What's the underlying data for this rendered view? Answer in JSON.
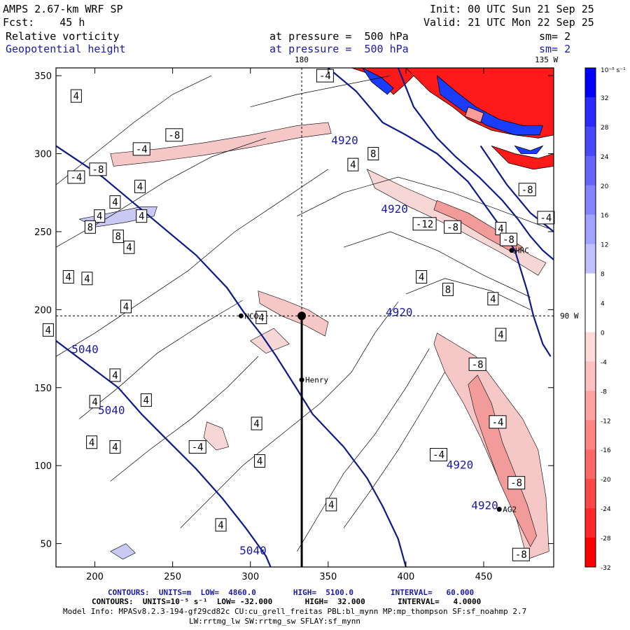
{
  "header": {
    "model_title": "AMPS 2.67-km WRF SP",
    "forecast": "Fcst:    45 h",
    "init": "Init: 00 UTC Sun 21 Sep 25",
    "valid": "Valid: 21 UTC Mon 22 Sep 25",
    "field1_name": "Relative vorticity",
    "field1_level": "at pressure =  500 hPa",
    "field1_smooth": "sm= 2",
    "field2_name": "Geopotential height",
    "field2_level": "at pressure =  500 hPa",
    "field2_smooth": "sm= 2"
  },
  "map_labels": {
    "top_lon_left": "180",
    "top_lon_right": "135 W",
    "right_lon": "90 W",
    "stations": [
      "NCO",
      "Henry",
      "HRC",
      "AG2"
    ]
  },
  "footer": {
    "contours_height": "CONTOURS:  UNITS=m  LOW=  4860.0        HIGH=  5100.0        INTERVAL=   60.000",
    "contours_vort": "CONTOURS:  UNITS=10⁻⁵ s⁻¹  LOW= -32.000       HIGH=  32.000       INTERVAL=   4.0000",
    "model_info": "Model Info: MPASv8.2.3-194-gf29cd82c CU:cu_grell_freitas PBL:bl_mynn MP:mp_thompson SF:sf_noahmp 2.7",
    "model_info2": "LW:rrtmg_lw SW:rrtmg_sw SFLAY:sf_mynn"
  },
  "chart_data": {
    "type": "heatmap",
    "xlim": [
      175,
      495
    ],
    "ylim": [
      35,
      355
    ],
    "x_ticks": [
      200,
      250,
      300,
      350,
      400,
      450
    ],
    "y_ticks": [
      50,
      100,
      150,
      200,
      250,
      300,
      350
    ],
    "height_contours": {
      "units": "m",
      "low": 4860.0,
      "high": 5100.0,
      "interval": 60.0,
      "lines": [
        {
          "level": 5040,
          "label": "5040",
          "points": [
            [
              175,
              305
            ],
            [
              205,
              285
            ],
            [
              235,
              260
            ],
            [
              265,
              235
            ],
            [
              285,
              214
            ],
            [
              296,
              198
            ],
            [
              307,
              184
            ],
            [
              316,
              171
            ],
            [
              330,
              149
            ],
            [
              340,
              133
            ],
            [
              360,
              112
            ],
            [
              375,
              92
            ],
            [
              385,
              74
            ],
            [
              395,
              53
            ],
            [
              400,
              35
            ]
          ]
        },
        {
          "level": 5040,
          "label": "5040",
          "points": [
            [
              175,
              180
            ],
            [
              195,
              165
            ],
            [
              215,
              150
            ],
            [
              230,
              133
            ],
            [
              248,
              115
            ],
            [
              265,
              98
            ],
            [
              282,
              79
            ],
            [
              297,
              60
            ],
            [
              310,
              42
            ],
            [
              313,
              35
            ]
          ]
        },
        {
          "level": 4920,
          "label": "4920",
          "points": [
            [
              395,
              355
            ],
            [
              405,
              330
            ],
            [
              420,
              310
            ],
            [
              432,
              298
            ],
            [
              447,
              285
            ],
            [
              462,
              270
            ],
            [
              472,
              258
            ],
            [
              480,
              247
            ],
            [
              488,
              238
            ],
            [
              495,
              232
            ]
          ]
        },
        {
          "level": 4920,
          "label": "4920",
          "points": [
            [
              350,
              355
            ],
            [
              368,
              340
            ],
            [
              385,
              320
            ],
            [
              400,
              312
            ],
            [
              420,
              300
            ],
            [
              440,
              282
            ],
            [
              458,
              257
            ],
            [
              470,
              238
            ],
            [
              478,
              212
            ],
            [
              482,
              196
            ],
            [
              488,
              178
            ],
            [
              493,
              170
            ]
          ]
        },
        {
          "level": 4920,
          "label": "4920",
          "points": [
            [
              448,
              305
            ],
            [
              465,
              280
            ],
            [
              480,
              262
            ],
            [
              495,
              250
            ]
          ]
        }
      ]
    },
    "vorticity": {
      "units": "10⁻⁵ s⁻¹",
      "low": -32.0,
      "high": 32.0,
      "interval": 4.0,
      "colorbar_levels": [
        -32,
        -28,
        -24,
        -20,
        -16,
        -12,
        -8,
        -4,
        0,
        4,
        8,
        12,
        16,
        20,
        24,
        28,
        32
      ]
    },
    "cross_lines": {
      "lon_line_x": 333,
      "lat_line_y": 196
    },
    "stations": [
      {
        "name": "NCO",
        "x": 294,
        "y": 196
      },
      {
        "name": "Henry",
        "x": 333,
        "y": 155
      },
      {
        "name": "HRC",
        "x": 468,
        "y": 238
      },
      {
        "name": "AG2",
        "x": 460,
        "y": 72
      }
    ],
    "grid": false
  }
}
